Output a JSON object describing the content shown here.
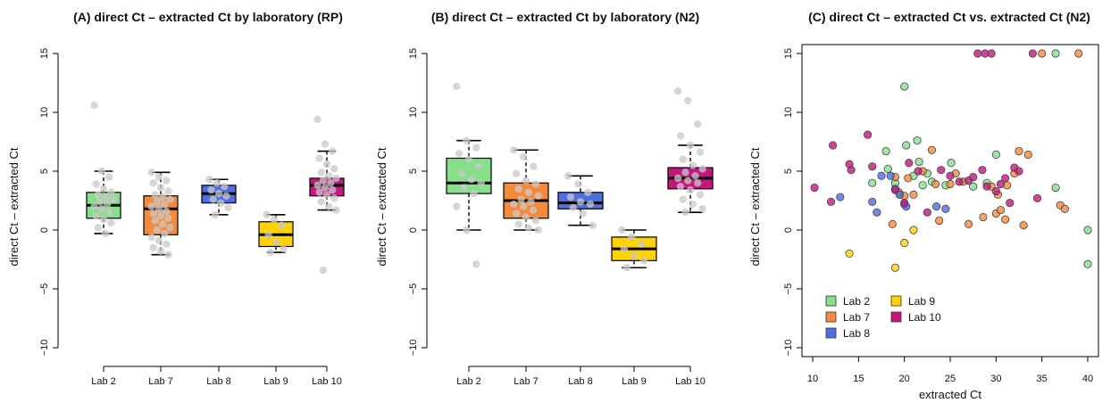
{
  "colors": {
    "Lab 2": "#86e08a",
    "Lab 7": "#f58a3c",
    "Lab 8": "#4f6fe0",
    "Lab 9": "#ffd200",
    "Lab 10": "#c4167e",
    "jitter": "#c8c8c8"
  },
  "chart_data": [
    {
      "type": "box",
      "title": "(A) direct Ct – extracted Ct by laboratory (RP)",
      "ylabel": "direct Ct – extracted Ct",
      "xlabel": "",
      "ylim": [
        -10,
        15
      ],
      "yticks": [
        -10,
        -5,
        0,
        5,
        10,
        15
      ],
      "categories": [
        "Lab 2",
        "Lab 7",
        "Lab 8",
        "Lab 9",
        "Lab 10"
      ],
      "boxes": [
        {
          "name": "Lab 2",
          "whisker_low": -0.3,
          "q1": 1.0,
          "median": 2.1,
          "q3": 3.2,
          "whisker_high": 5.0,
          "points": [
            10.6,
            5.0,
            4.5,
            3.9,
            3.5,
            3.2,
            3.0,
            2.8,
            2.6,
            2.4,
            2.2,
            2.0,
            1.8,
            1.5,
            1.2,
            0.9,
            0.6,
            0.2,
            -0.3
          ]
        },
        {
          "name": "Lab 7",
          "whisker_low": -2.1,
          "q1": -0.4,
          "median": 1.8,
          "q3": 2.9,
          "whisker_high": 4.9,
          "points": [
            4.9,
            4.5,
            4.2,
            4.0,
            3.6,
            3.3,
            3.0,
            2.8,
            2.6,
            2.4,
            2.2,
            2.0,
            1.8,
            1.6,
            1.4,
            1.2,
            1.0,
            0.8,
            0.5,
            0.2,
            0.0,
            -0.3,
            -0.6,
            -0.9,
            -1.2,
            -1.5,
            -1.8,
            -2.1
          ]
        },
        {
          "name": "Lab 8",
          "whisker_low": 1.3,
          "q1": 2.3,
          "median": 3.1,
          "q3": 3.8,
          "whisker_high": 4.3,
          "points": [
            4.3,
            4.0,
            3.7,
            3.4,
            3.1,
            2.9,
            2.6,
            2.3,
            1.9,
            1.3
          ]
        },
        {
          "name": "Lab 9",
          "whisker_low": -1.9,
          "q1": -1.4,
          "median": -0.4,
          "q3": 0.7,
          "whisker_high": 1.3,
          "points": [
            1.3,
            0.9,
            0.4,
            -0.4,
            -1.0,
            -1.6,
            -1.9
          ]
        },
        {
          "name": "Lab 10",
          "whisker_low": 1.7,
          "q1": 2.9,
          "median": 3.8,
          "q3": 4.4,
          "whisker_high": 6.7,
          "points": [
            9.4,
            7.3,
            6.7,
            6.1,
            5.6,
            5.2,
            4.9,
            4.6,
            4.4,
            4.2,
            4.0,
            3.8,
            3.6,
            3.4,
            3.2,
            3.0,
            2.7,
            2.4,
            2.0,
            1.7,
            -3.4
          ]
        }
      ]
    },
    {
      "type": "box",
      "title": "(B) direct Ct – extracted Ct by laboratory (N2)",
      "ylabel": "direct Ct – extracted Ct",
      "xlabel": "",
      "ylim": [
        -10,
        15
      ],
      "yticks": [
        -10,
        -5,
        0,
        5,
        10,
        15
      ],
      "categories": [
        "Lab 2",
        "Lab 7",
        "Lab 8",
        "Lab 9",
        "Lab 10"
      ],
      "boxes": [
        {
          "name": "Lab 2",
          "whisker_low": 0.0,
          "q1": 3.1,
          "median": 4.0,
          "q3": 6.1,
          "whisker_high": 7.6,
          "points": [
            12.2,
            7.6,
            7.0,
            6.5,
            6.0,
            5.4,
            4.8,
            4.3,
            4.0,
            3.6,
            3.1,
            2.0,
            0.0,
            -2.9
          ]
        },
        {
          "name": "Lab 7",
          "whisker_low": 0.0,
          "q1": 1.0,
          "median": 2.5,
          "q3": 4.0,
          "whisker_high": 6.8,
          "points": [
            6.8,
            6.2,
            5.4,
            4.8,
            4.2,
            3.9,
            3.5,
            3.2,
            2.9,
            2.6,
            2.4,
            2.2,
            2.0,
            1.7,
            1.4,
            1.1,
            0.8,
            0.5,
            0.2,
            0.0
          ]
        },
        {
          "name": "Lab 8",
          "whisker_low": 0.4,
          "q1": 1.8,
          "median": 2.3,
          "q3": 3.2,
          "whisker_high": 4.6,
          "points": [
            4.6,
            3.9,
            3.2,
            2.8,
            2.4,
            2.2,
            1.9,
            1.4,
            0.4
          ]
        },
        {
          "name": "Lab 9",
          "whisker_low": -3.2,
          "q1": -2.6,
          "median": -1.6,
          "q3": -0.6,
          "whisker_high": 0.0,
          "points": [
            0.0,
            -0.6,
            -1.2,
            -1.6,
            -2.2,
            -2.6,
            -3.2
          ]
        },
        {
          "name": "Lab 10",
          "whisker_low": 1.5,
          "q1": 3.5,
          "median": 4.4,
          "q3": 5.3,
          "whisker_high": 7.2,
          "points": [
            11.8,
            11.0,
            9.0,
            8.0,
            7.2,
            6.6,
            6.0,
            5.5,
            5.2,
            4.9,
            4.6,
            4.4,
            4.2,
            4.0,
            3.7,
            3.4,
            3.0,
            2.6,
            2.2,
            1.8,
            1.5
          ]
        }
      ]
    },
    {
      "type": "scatter",
      "title": "(C) direct Ct – extracted Ct vs. extracted Ct (N2)",
      "ylabel": "direct Ct – extracted Ct",
      "xlabel": "extracted Ct",
      "xlim": [
        10,
        40
      ],
      "ylim": [
        -10,
        15
      ],
      "xticks": [
        10,
        15,
        20,
        25,
        30,
        35,
        40
      ],
      "yticks": [
        -10,
        -5,
        0,
        5,
        10,
        15
      ],
      "legend": {
        "position": "bottom-left",
        "entries": [
          "Lab 2",
          "Lab 7",
          "Lab 8",
          "Lab 9",
          "Lab 10"
        ]
      },
      "series": [
        {
          "name": "Lab 2",
          "points": [
            [
              16.5,
              4.0
            ],
            [
              18.0,
              6.7
            ],
            [
              18.2,
              5.2
            ],
            [
              19.0,
              4.0
            ],
            [
              19.5,
              3.0
            ],
            [
              20.0,
              12.2
            ],
            [
              20.2,
              7.2
            ],
            [
              21.0,
              4.6
            ],
            [
              21.4,
              7.6
            ],
            [
              21.6,
              5.8
            ],
            [
              22.0,
              3.8
            ],
            [
              22.5,
              4.8
            ],
            [
              23.0,
              4.1
            ],
            [
              24.5,
              3.8
            ],
            [
              25.1,
              5.7
            ],
            [
              27.5,
              3.7
            ],
            [
              29.0,
              4.0
            ],
            [
              30.0,
              6.4
            ],
            [
              36.5,
              3.6
            ],
            [
              36.5,
              15.0
            ],
            [
              40.0,
              0.0
            ],
            [
              40.0,
              -2.9
            ]
          ]
        },
        {
          "name": "Lab 7",
          "points": [
            [
              18.7,
              0.5
            ],
            [
              19.0,
              4.5
            ],
            [
              19.4,
              3.2
            ],
            [
              20.0,
              2.9
            ],
            [
              20.4,
              4.4
            ],
            [
              21.0,
              3.0
            ],
            [
              22.0,
              5.0
            ],
            [
              23.0,
              6.8
            ],
            [
              23.4,
              3.9
            ],
            [
              23.8,
              0.8
            ],
            [
              25.0,
              3.9
            ],
            [
              25.6,
              4.8
            ],
            [
              26.4,
              4.1
            ],
            [
              27.0,
              0.5
            ],
            [
              28.6,
              1.1
            ],
            [
              29.5,
              3.7
            ],
            [
              30.0,
              1.4
            ],
            [
              30.2,
              3.0
            ],
            [
              30.5,
              1.7
            ],
            [
              31.0,
              0.9
            ],
            [
              31.2,
              3.8
            ],
            [
              32.0,
              4.8
            ],
            [
              32.5,
              6.7
            ],
            [
              33.0,
              0.4
            ],
            [
              33.5,
              6.4
            ],
            [
              35.0,
              15.0
            ],
            [
              37.0,
              2.1
            ],
            [
              37.5,
              1.8
            ],
            [
              39.0,
              15.0
            ]
          ]
        },
        {
          "name": "Lab 8",
          "points": [
            [
              13.0,
              2.8
            ],
            [
              16.5,
              2.4
            ],
            [
              17.0,
              1.5
            ],
            [
              17.5,
              4.6
            ],
            [
              18.5,
              4.6
            ],
            [
              19.0,
              3.5
            ],
            [
              19.5,
              3.0
            ],
            [
              20.0,
              2.2
            ],
            [
              20.2,
              2.0
            ],
            [
              23.5,
              2.0
            ],
            [
              24.5,
              1.8
            ]
          ]
        },
        {
          "name": "Lab 9",
          "points": [
            [
              14.0,
              -2.0
            ],
            [
              19.0,
              -3.2
            ],
            [
              20.0,
              -1.1
            ],
            [
              21.0,
              0.0
            ]
          ]
        },
        {
          "name": "Lab 10",
          "points": [
            [
              10.2,
              3.6
            ],
            [
              12.0,
              2.4
            ],
            [
              12.2,
              7.2
            ],
            [
              14.0,
              5.6
            ],
            [
              14.2,
              5.1
            ],
            [
              16.0,
              8.1
            ],
            [
              16.5,
              5.4
            ],
            [
              19.0,
              3.4
            ],
            [
              20.0,
              2.3
            ],
            [
              20.5,
              5.7
            ],
            [
              21.5,
              5.0
            ],
            [
              22.5,
              1.5
            ],
            [
              24.0,
              5.1
            ],
            [
              25.0,
              4.6
            ],
            [
              26.0,
              4.1
            ],
            [
              27.0,
              4.2
            ],
            [
              27.5,
              4.5
            ],
            [
              28.0,
              15.0
            ],
            [
              28.5,
              5.1
            ],
            [
              28.8,
              15.0
            ],
            [
              29.0,
              3.7
            ],
            [
              29.5,
              15.0
            ],
            [
              30.0,
              3.3
            ],
            [
              30.5,
              3.9
            ],
            [
              31.0,
              4.4
            ],
            [
              31.5,
              2.3
            ],
            [
              32.0,
              5.3
            ],
            [
              32.5,
              5.0
            ],
            [
              34.0,
              15.0
            ],
            [
              34.5,
              2.7
            ]
          ]
        }
      ]
    }
  ]
}
